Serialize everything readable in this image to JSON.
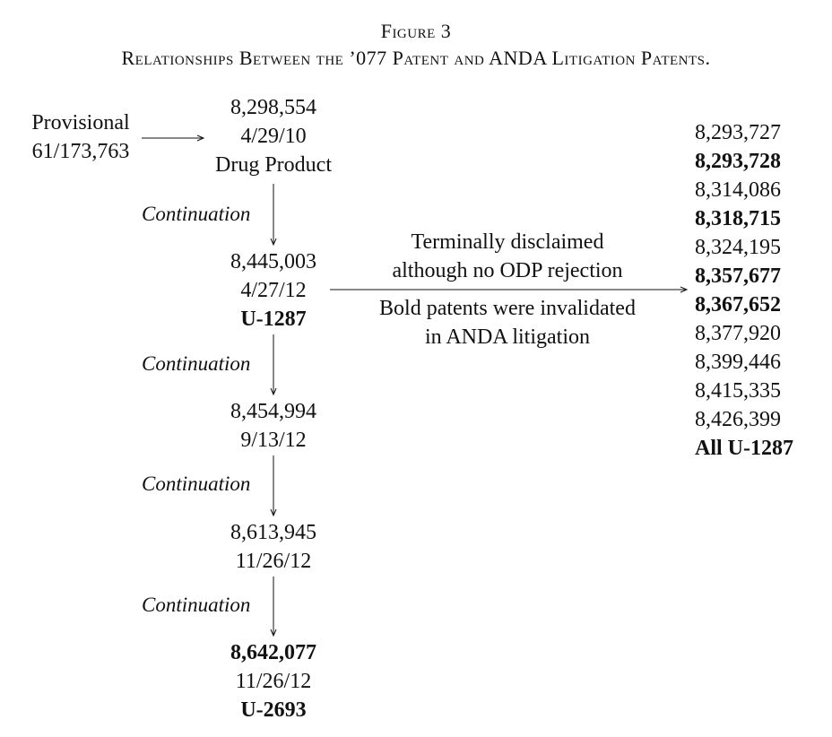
{
  "figure": {
    "label": "Figure 3",
    "title": "Relationships Between the ’077 Patent and ANDA Litigation Patents."
  },
  "provisional": {
    "line1": "Provisional",
    "line2": "61/173,763"
  },
  "chain": [
    {
      "number": "8,298,554",
      "date": "4/29/10",
      "note": "Drug Product",
      "number_bold": false,
      "note_bold": false
    },
    {
      "number": "8,445,003",
      "date": "4/27/12",
      "note": "U-1287",
      "number_bold": false,
      "note_bold": true
    },
    {
      "number": "8,454,994",
      "date": "9/13/12",
      "note": "",
      "number_bold": false,
      "note_bold": false
    },
    {
      "number": "8,613,945",
      "date": "11/26/12",
      "note": "",
      "number_bold": false,
      "note_bold": false
    },
    {
      "number": "8,642,077",
      "date": "11/26/12",
      "note": "U-2693",
      "number_bold": true,
      "note_bold": true
    }
  ],
  "continuation_label": "Continuation",
  "middle": {
    "upper_line1": "Terminally disclaimed",
    "upper_line2": "although no ODP rejection",
    "lower_line1": "Bold patents were invalidated",
    "lower_line2": "in ANDA litigation"
  },
  "right_list": [
    {
      "number": "8,293,727",
      "bold": false
    },
    {
      "number": "8,293,728",
      "bold": true
    },
    {
      "number": "8,314,086",
      "bold": false
    },
    {
      "number": "8,318,715",
      "bold": true
    },
    {
      "number": "8,324,195",
      "bold": false
    },
    {
      "number": "8,357,677",
      "bold": true
    },
    {
      "number": "8,367,652",
      "bold": true
    },
    {
      "number": "8,377,920",
      "bold": false
    },
    {
      "number": "8,399,446",
      "bold": false
    },
    {
      "number": "8,415,335",
      "bold": false
    },
    {
      "number": "8,426,399",
      "bold": false
    }
  ],
  "right_footer": "All U-1287"
}
